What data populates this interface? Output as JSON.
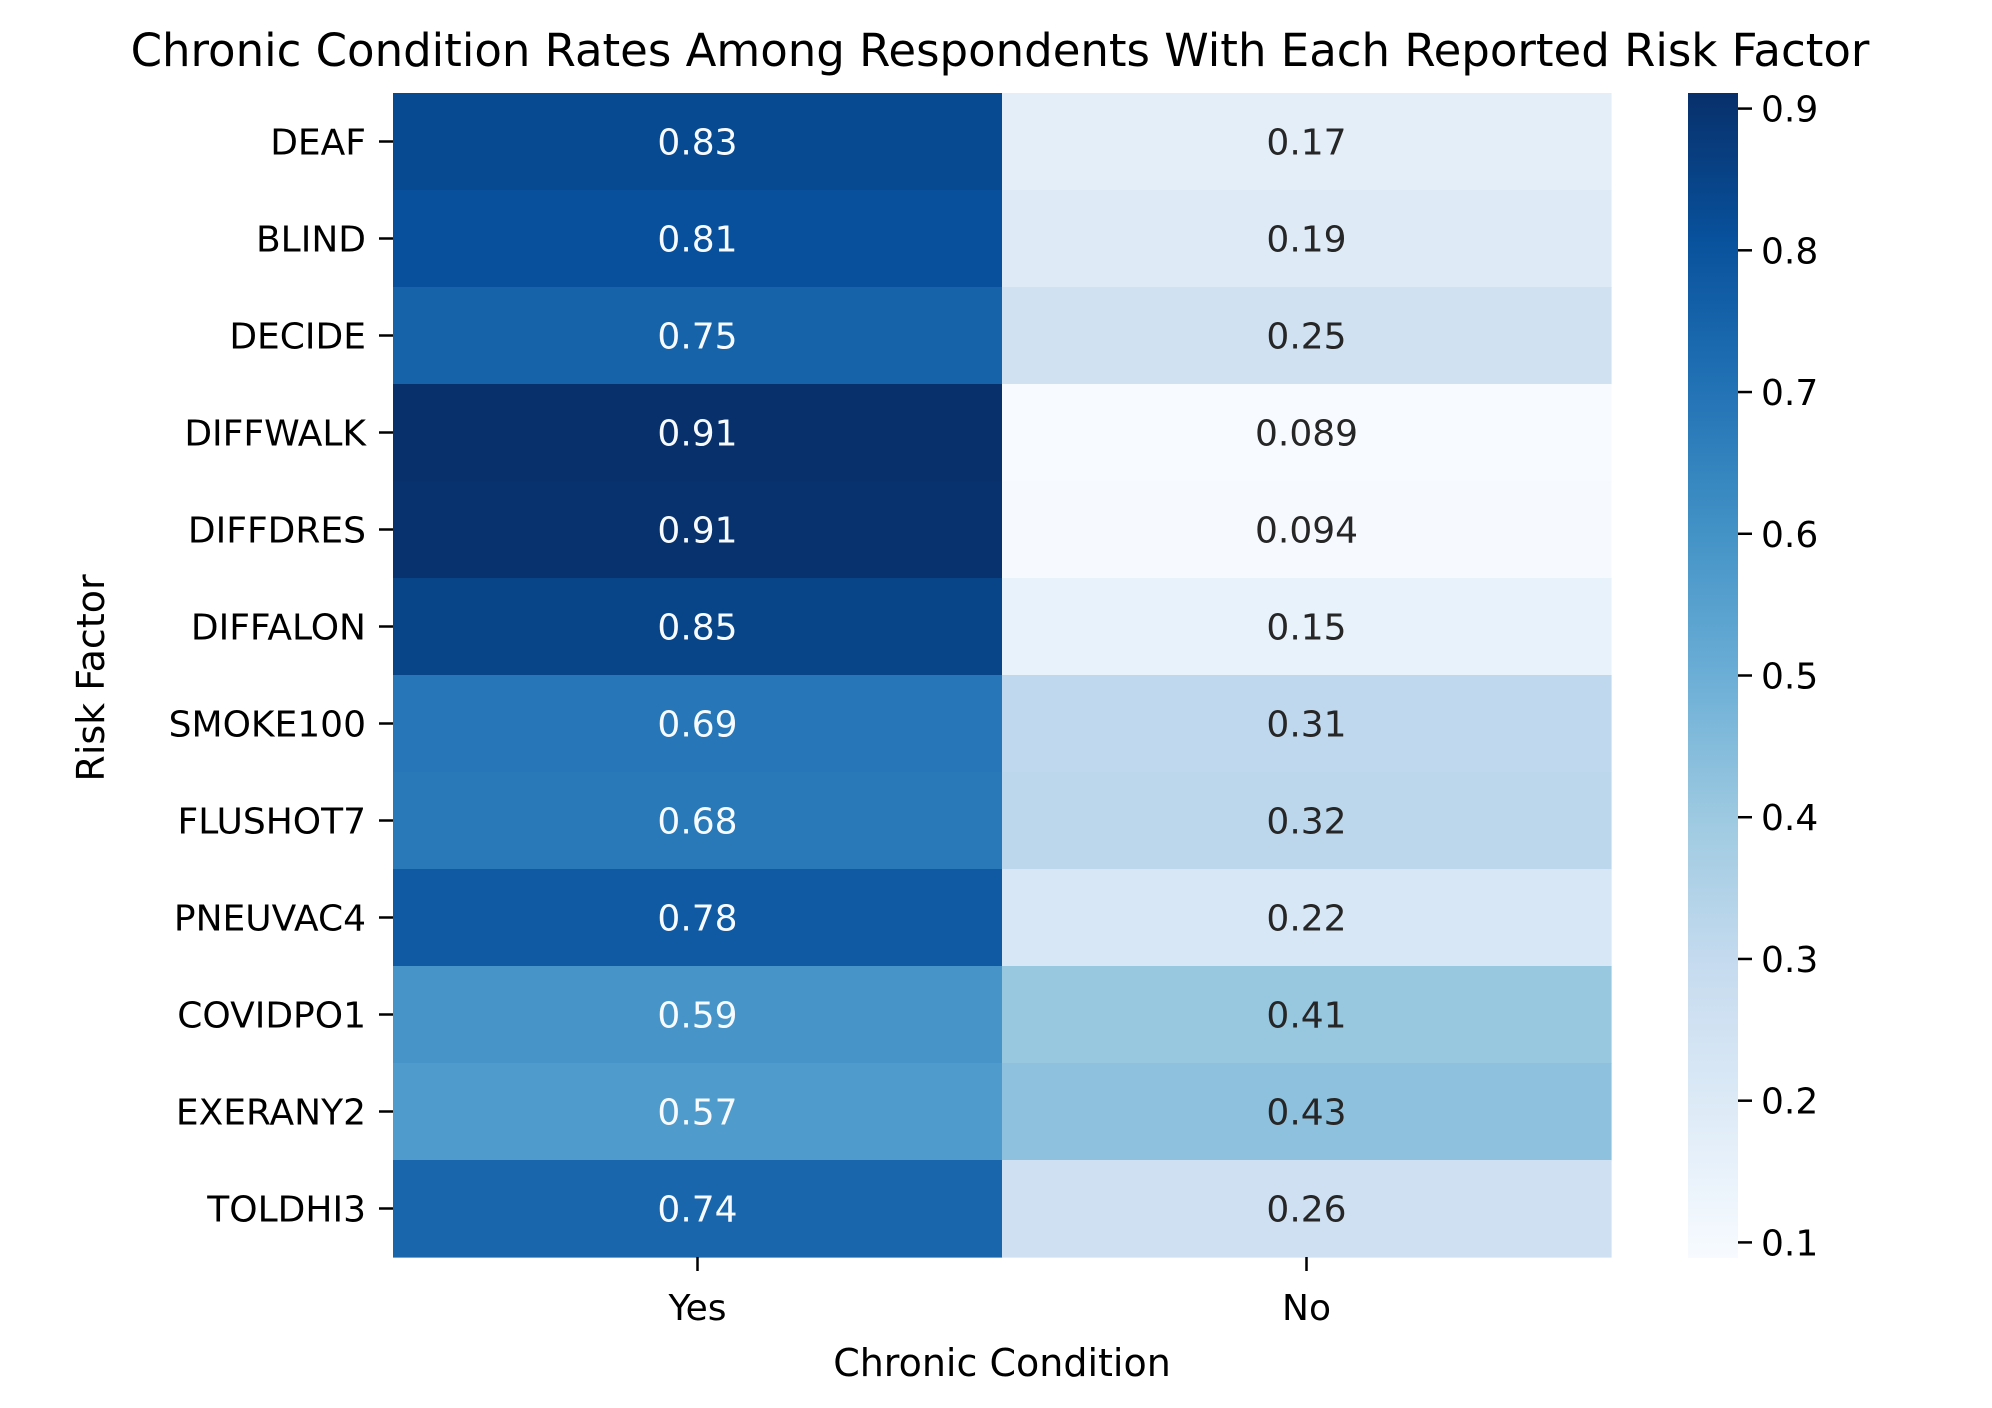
{
  "chart_data": {
    "type": "heatmap",
    "title": "Chronic Condition Rates Among Respondents With Each Reported Risk Factor",
    "xlabel": "Chronic Condition",
    "ylabel": "Risk Factor",
    "x_categories": [
      "Yes",
      "No"
    ],
    "y_categories": [
      "DEAF",
      "BLIND",
      "DECIDE",
      "DIFFWALK",
      "DIFFDRES",
      "DIFFALON",
      "SMOKE100",
      "FLUSHOT7",
      "PNEUVAC4",
      "COVIDPO1",
      "EXERANY2",
      "TOLDHI3"
    ],
    "values": [
      [
        0.83,
        0.17
      ],
      [
        0.81,
        0.19
      ],
      [
        0.75,
        0.25
      ],
      [
        0.911,
        0.089
      ],
      [
        0.906,
        0.094
      ],
      [
        0.85,
        0.15
      ],
      [
        0.69,
        0.31
      ],
      [
        0.68,
        0.32
      ],
      [
        0.78,
        0.22
      ],
      [
        0.59,
        0.41
      ],
      [
        0.57,
        0.43
      ],
      [
        0.74,
        0.26
      ]
    ],
    "labels": [
      [
        "0.83",
        "0.17"
      ],
      [
        "0.81",
        "0.19"
      ],
      [
        "0.75",
        "0.25"
      ],
      [
        "0.91",
        "0.089"
      ],
      [
        "0.91",
        "0.094"
      ],
      [
        "0.85",
        "0.15"
      ],
      [
        "0.69",
        "0.31"
      ],
      [
        "0.68",
        "0.32"
      ],
      [
        "0.78",
        "0.22"
      ],
      [
        "0.59",
        "0.41"
      ],
      [
        "0.57",
        "0.43"
      ],
      [
        "0.74",
        "0.26"
      ]
    ],
    "colormap": "Blues",
    "colorbar": {
      "range": [
        0.089,
        0.911
      ],
      "ticks": [
        0.1,
        0.2,
        0.3,
        0.4,
        0.5,
        0.6,
        0.7,
        0.8,
        0.9
      ],
      "tick_labels": [
        "0.1",
        "0.2",
        "0.3",
        "0.4",
        "0.5",
        "0.6",
        "0.7",
        "0.8",
        "0.9"
      ]
    },
    "colors": {
      "light_text": "#f7fbff",
      "dark_text": "#262626",
      "low": "#f7fbff",
      "high": "#08306b"
    }
  }
}
